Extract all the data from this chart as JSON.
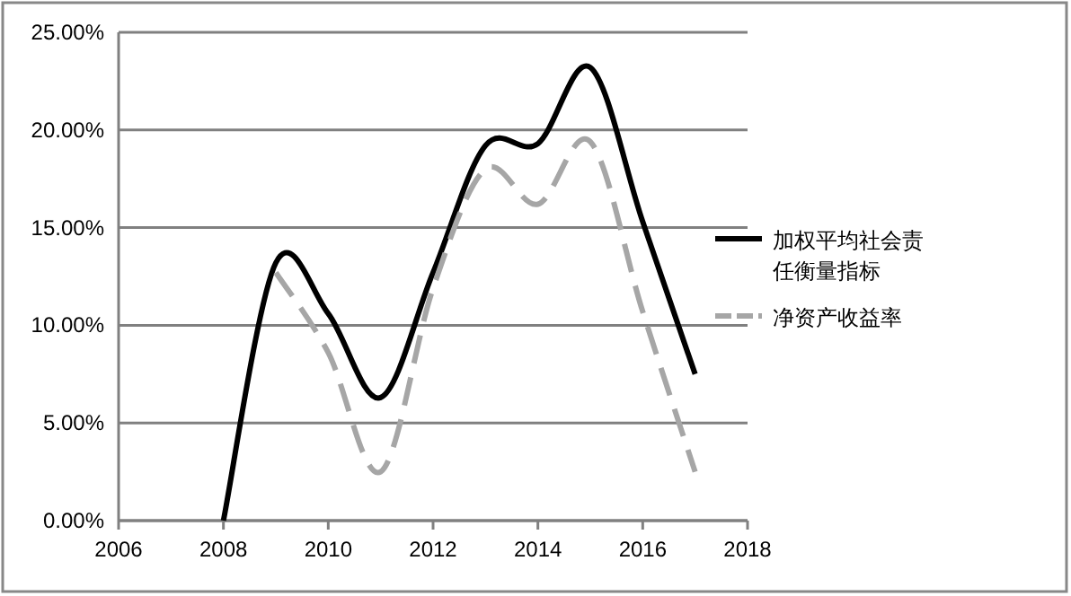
{
  "chart_data": {
    "type": "line",
    "x": [
      2008,
      2009,
      2010,
      2011,
      2012,
      2013,
      2014,
      2015,
      2016,
      2017
    ],
    "series": [
      {
        "name": "加权平均社会责任衡量指标",
        "color": "#000000",
        "line_style": "solid",
        "values": [
          0,
          13.2,
          10.6,
          6.3,
          12.7,
          19.2,
          19.3,
          23.2,
          15.3,
          7.5
        ]
      },
      {
        "name": "净资产收益率",
        "color": "#a6a6a6",
        "line_style": "dashed",
        "values": [
          null,
          12.7,
          8.6,
          2.5,
          11.9,
          18.0,
          16.2,
          19.4,
          10.7,
          2.5
        ]
      }
    ],
    "xlim": [
      2006,
      2018
    ],
    "xticks": [
      2006,
      2008,
      2010,
      2012,
      2014,
      2016,
      2018
    ],
    "ylim": [
      0,
      25
    ],
    "yticks": [
      {
        "value": 0,
        "label": "0.00%"
      },
      {
        "value": 5,
        "label": "5.00%"
      },
      {
        "value": 10,
        "label": "10.00%"
      },
      {
        "value": 15,
        "label": "15.00%"
      },
      {
        "value": 20,
        "label": "20.00%"
      },
      {
        "value": 25,
        "label": "25.00%"
      }
    ],
    "grid": "y",
    "legend": "right"
  }
}
